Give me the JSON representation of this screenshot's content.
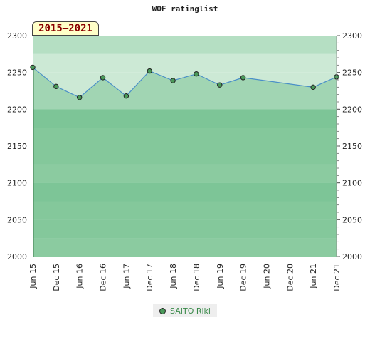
{
  "chart_data": {
    "type": "area",
    "title": "WOF ratinglist",
    "period_label": "2015–2021",
    "ylim": [
      2000,
      2300
    ],
    "y_ticks": [
      2000,
      2050,
      2100,
      2150,
      2200,
      2250,
      2300
    ],
    "x_ticks": [
      "Jun 15",
      "Dec 15",
      "Jun 16",
      "Dec 16",
      "Jun 17",
      "Dec 17",
      "Jun 18",
      "Dec 18",
      "Jun 19",
      "Dec 19",
      "Jun 20",
      "Dec 20",
      "Jun 21",
      "Dec 21"
    ],
    "series": [
      {
        "name": "SAITO Riki",
        "x": [
          "Jun 15",
          "Dec 15",
          "Jun 16",
          "Dec 16",
          "Jun 17",
          "Dec 17",
          "Jun 18",
          "Dec 18",
          "Jun 19",
          "Dec 19",
          "Jun 21",
          "Dec 21"
        ],
        "values": [
          2257,
          2231,
          2216,
          2243,
          2218,
          2252,
          2239,
          2248,
          2233,
          2243,
          2230,
          2244
        ]
      }
    ],
    "legend_position": "bottom-center",
    "grid": true
  },
  "colors": {
    "band_dark": "#7dc597",
    "band_mid": "#8ccc9f",
    "band_light": "#9bd3aa",
    "band_top_a": "#b5dfc3",
    "band_top_b": "#cce9d5",
    "band_top_c": "#dcf1e2",
    "line": "#4a8fc8",
    "marker": "#4a9a5a"
  }
}
